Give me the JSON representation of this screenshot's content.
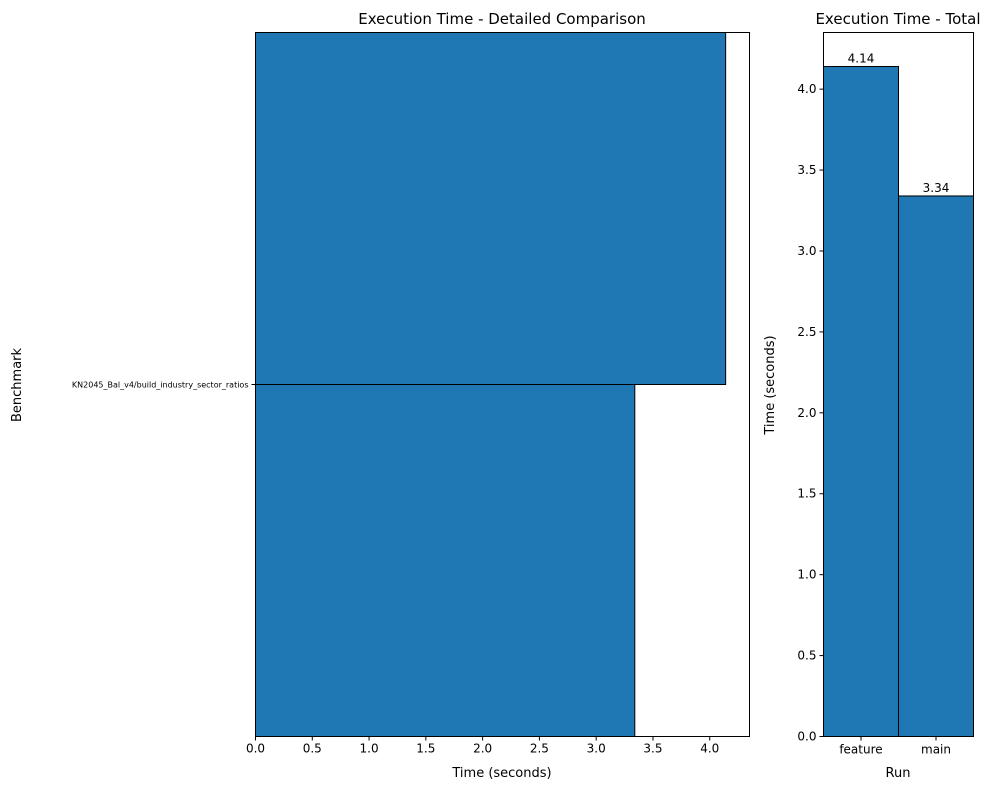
{
  "chart_data": [
    {
      "type": "bar",
      "orientation": "horizontal",
      "title": "Execution Time - Detailed Comparison",
      "xlabel": "Time (seconds)",
      "ylabel": "Benchmark",
      "xlim": [
        0,
        4.35
      ],
      "xticks": [
        "0.0",
        "0.5",
        "1.0",
        "1.5",
        "2.0",
        "2.5",
        "3.0",
        "3.5",
        "4.0"
      ],
      "categories": [
        "KN2045_Bal_v4/build_industry_sector_ratios"
      ],
      "series": [
        {
          "values": [
            4.14
          ]
        },
        {
          "values": [
            3.34
          ]
        }
      ],
      "grid": false,
      "bar_color": "#1f77b4"
    },
    {
      "type": "bar",
      "title": "Execution Time - Total",
      "xlabel": "Run",
      "ylabel": "Time (seconds)",
      "ylim": [
        0,
        4.35
      ],
      "yticks": [
        "0.0",
        "0.5",
        "1.0",
        "1.5",
        "2.0",
        "2.5",
        "3.0",
        "3.5",
        "4.0"
      ],
      "categories": [
        "feature",
        "main"
      ],
      "values": [
        4.14,
        3.34
      ],
      "data_labels": [
        "4.14",
        "3.34"
      ],
      "grid": false,
      "bar_color": "#1f77b4"
    }
  ]
}
